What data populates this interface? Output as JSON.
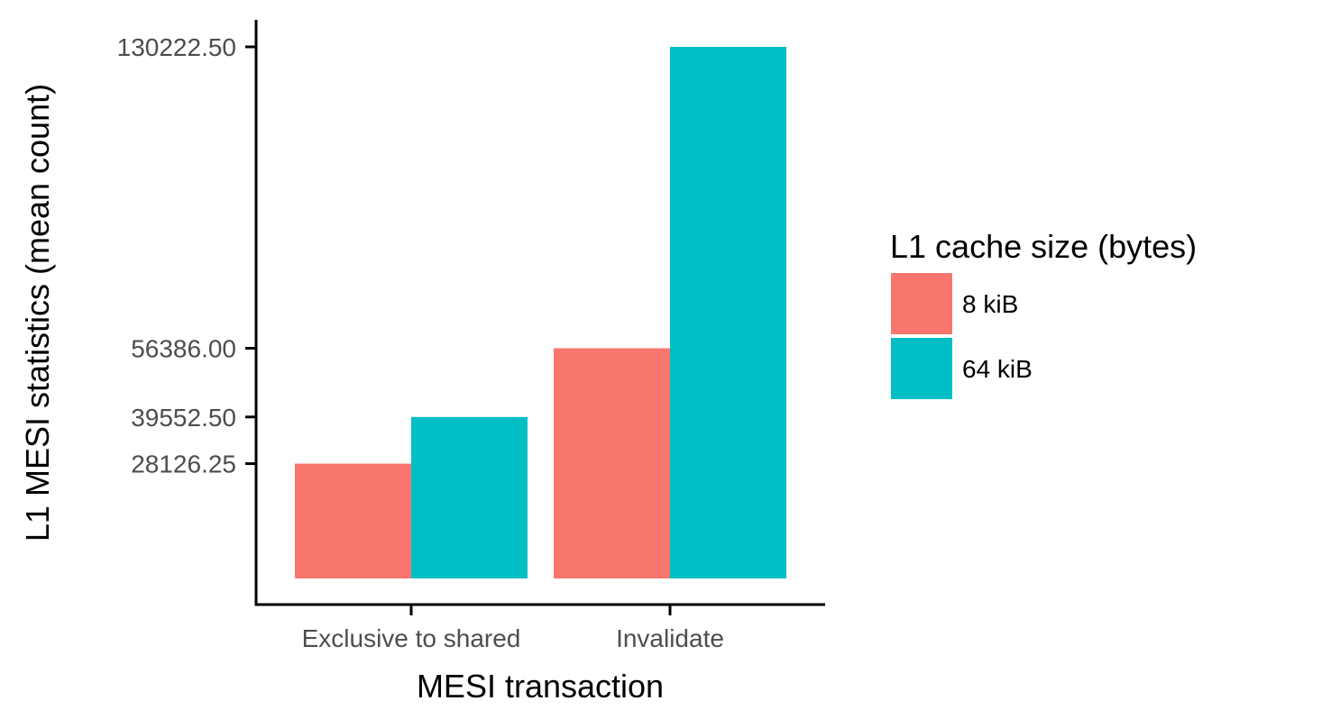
{
  "chart_data": {
    "type": "bar",
    "categories": [
      "Exclusive to shared",
      "Invalidate"
    ],
    "series": [
      {
        "name": "8 kiB",
        "color": "#F8766D",
        "values": [
          28126.25,
          56386.0
        ]
      },
      {
        "name": "64 kiB",
        "color": "#00BFC4",
        "values": [
          39552.5,
          130222.5
        ]
      }
    ],
    "y_ticks": [
      28126.25,
      39552.5,
      56386.0,
      130222.5
    ],
    "y_tick_labels": [
      "28126.25",
      "39552.50",
      "56386.00",
      "130222.50"
    ],
    "xlabel": "MESI transaction",
    "ylabel": "L1 MESI statistics (mean count)",
    "legend_title": "L1 cache size (bytes)",
    "legend_position": "right",
    "ylim": [
      0,
      130222.5
    ],
    "grid": false
  }
}
